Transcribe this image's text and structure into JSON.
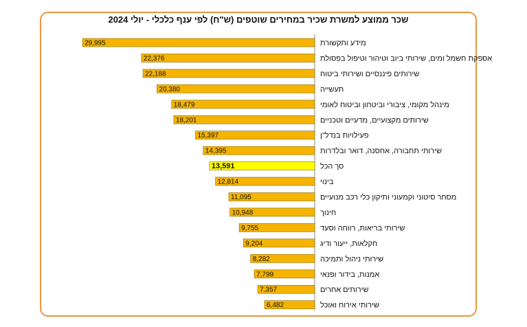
{
  "chart_data": {
    "type": "bar",
    "orientation": "horizontal",
    "title": "שכר ממוצע למשרת שכיר במחירים שוטפים (ש\"ח) לפי ענף כלכלי - יולי  2024",
    "categories": [
      "מידע ותקשורת",
      "אספקת חשמל ומים, שירותי ביוב וטיהור וטיפול בפסולת",
      "שירותים פיננסיים ושירותי ביטוח",
      "תעשייה",
      "מינהל מקומי, ציבורי וביטחון וביטוח לאומי",
      "שירותים מקצועיים, מדעיים וטכניים",
      "פעילויות בנדל\"ן",
      "שירותי תחבורה, אחסנה, דואר ובלדרות",
      "סך הכל",
      "בינוי",
      "מסחר סיטוני וקמעוני ותיקון כלי רכב מנועיים",
      "חינוך",
      "שירותי בריאות, רווחה וסעד",
      "חקלאות, ייעור ודיג",
      "שירותי ניהול ותמיכה",
      "אמנות, בידור ופנאי",
      "שירותים אחרים",
      "שירותי אירוח ואוכל"
    ],
    "values": [
      29995,
      22376,
      22188,
      20380,
      18479,
      18201,
      15397,
      14395,
      13591,
      12814,
      11095,
      10948,
      9755,
      9204,
      8282,
      7799,
      7357,
      6482
    ],
    "value_labels": [
      "29,995",
      "22,376",
      "22,188",
      "20,380",
      "18,479",
      "18,201",
      "15,397",
      "14,395",
      "13,591",
      "12,814",
      "11,095",
      "10,948",
      "9,755",
      "9,204",
      "8,282",
      "7,799",
      "7,357",
      "6,482"
    ],
    "highlight_category": "סך הכל",
    "colors": {
      "bar": "#f5b400",
      "highlight": "#ffff00",
      "border": "#e8963a"
    },
    "xlim": [
      0,
      30000
    ],
    "grid": false,
    "legend": "none"
  }
}
